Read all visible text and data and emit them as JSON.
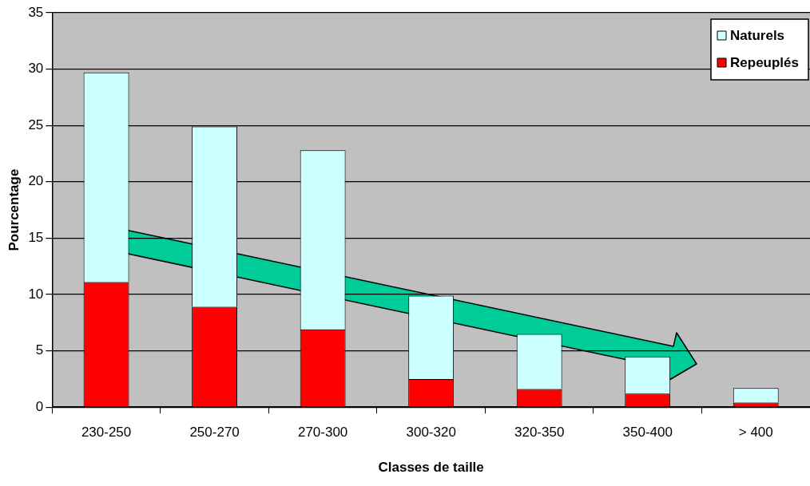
{
  "chart_data": {
    "type": "bar",
    "stacked": true,
    "xlabel": "Classes de taille",
    "ylabel": "Pourcentage",
    "categories": [
      "230-250",
      "250-270",
      "270-300",
      "300-320",
      "320-350",
      "350-400",
      "> 400"
    ],
    "series": [
      {
        "name": "Repeuplés",
        "color": "#ff0000",
        "values": [
          11.1,
          8.9,
          6.9,
          2.5,
          1.6,
          1.2,
          0.4
        ]
      },
      {
        "name": "Naturels",
        "color": "#ccffff",
        "values": [
          18.6,
          16.0,
          15.9,
          7.4,
          4.9,
          3.3,
          1.3
        ]
      }
    ],
    "ylim": [
      0,
      35
    ],
    "yticks": [
      0,
      5,
      10,
      15,
      20,
      25,
      30,
      35
    ],
    "grid": "y",
    "legend": "top right"
  }
}
